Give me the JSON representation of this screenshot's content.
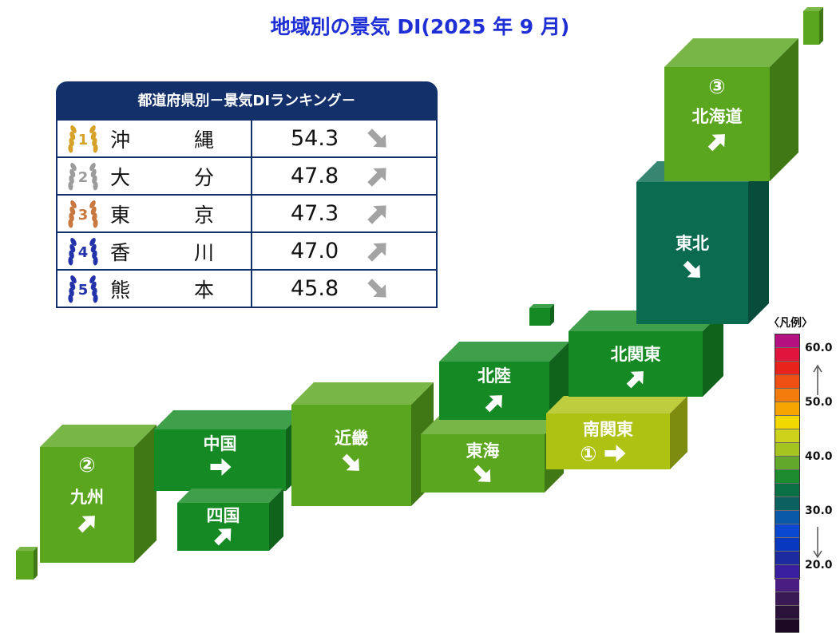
{
  "title": "地域別の景気 DI(2025 年 9 月)",
  "ranking": {
    "header": "都道府県別－景気DIランキング－",
    "rows": [
      {
        "rank": "1",
        "pref_a": "沖",
        "pref_b": "縄",
        "value": "54.3",
        "trend": "down-right",
        "laurel_color": "#d6a22a"
      },
      {
        "rank": "2",
        "pref_a": "大",
        "pref_b": "分",
        "value": "47.8",
        "trend": "up-right",
        "laurel_color": "#9b9b9b"
      },
      {
        "rank": "3",
        "pref_a": "東",
        "pref_b": "京",
        "value": "47.3",
        "trend": "up-right",
        "laurel_color": "#c8783e"
      },
      {
        "rank": "4",
        "pref_a": "香",
        "pref_b": "川",
        "value": "47.0",
        "trend": "up-right",
        "laurel_color": "#2233aa"
      },
      {
        "rank": "5",
        "pref_a": "熊",
        "pref_b": "本",
        "value": "45.8",
        "trend": "down-right",
        "laurel_color": "#2233aa"
      }
    ]
  },
  "regions": {
    "hokkaido": {
      "name": "北海道",
      "rank_mark": "③",
      "trend": "up-right",
      "color": "#5aa61e"
    },
    "tohoku": {
      "name": "東北",
      "rank_mark": "",
      "trend": "down-right",
      "color": "#0b6b4f"
    },
    "kitakanto": {
      "name": "北関東",
      "rank_mark": "",
      "trend": "up-right",
      "color": "#158a24"
    },
    "minamikanto": {
      "name": "南関東",
      "rank_mark": "①",
      "trend": "right",
      "color": "#aec214"
    },
    "hokuriku": {
      "name": "北陸",
      "rank_mark": "",
      "trend": "up-right",
      "color": "#158a24"
    },
    "tokai": {
      "name": "東海",
      "rank_mark": "",
      "trend": "down-right",
      "color": "#5aa61e"
    },
    "kinki": {
      "name": "近畿",
      "rank_mark": "",
      "trend": "down-right",
      "color": "#5aa61e"
    },
    "chugoku": {
      "name": "中国",
      "rank_mark": "",
      "trend": "right",
      "color": "#158a24"
    },
    "shikoku": {
      "name": "四国",
      "rank_mark": "",
      "trend": "up-right",
      "color": "#158a24"
    },
    "kyushu": {
      "name": "九州",
      "rank_mark": "②",
      "trend": "up-right",
      "color": "#5aa61e"
    }
  },
  "legend": {
    "title": "〈凡例〉",
    "ticks": [
      "60.0",
      "50.0",
      "40.0",
      "30.0",
      "20.0"
    ],
    "colors": [
      "#b4107f",
      "#e0143c",
      "#e8231c",
      "#ef4f12",
      "#f47c0c",
      "#f6a500",
      "#f0d800",
      "#cdd21a",
      "#a6c41f",
      "#62a82a",
      "#1d8c2f",
      "#0c7046",
      "#0b6060",
      "#0a58a8",
      "#0a48d2",
      "#0838c0",
      "#1c2ca0",
      "#3a1fa0",
      "#4a1e80",
      "#3a1a54",
      "#2a1238",
      "#1c0a24"
    ]
  }
}
